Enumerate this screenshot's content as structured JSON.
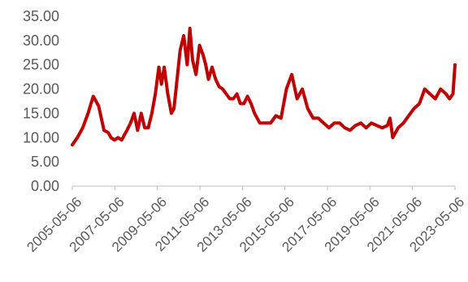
{
  "chart_data": {
    "type": "line",
    "title": "",
    "xlabel": "",
    "ylabel": "",
    "ylim": [
      0,
      35
    ],
    "yticks": [
      "0.00",
      "5.00",
      "10.00",
      "15.00",
      "20.00",
      "25.00",
      "30.00",
      "35.00"
    ],
    "xticks": [
      "2005-05-06",
      "2007-05-06",
      "2009-05-06",
      "2011-05-06",
      "2013-05-06",
      "2015-05-06",
      "2017-05-06",
      "2019-05-06",
      "2021-05-06",
      "2023-05-06"
    ],
    "grid": false,
    "legend": "none",
    "line_color": "#C00000",
    "series": [
      {
        "x": [
          "2005-05-06",
          "2005-08-01",
          "2005-11-01",
          "2006-02-01",
          "2006-05-01",
          "2006-08-01",
          "2006-11-01",
          "2007-01-15",
          "2007-03-01",
          "2007-05-01",
          "2007-07-01",
          "2007-09-01",
          "2007-10-15",
          "2007-12-01",
          "2008-02-01",
          "2008-04-01",
          "2008-06-01",
          "2008-08-01",
          "2008-10-01",
          "2008-12-01",
          "2009-02-01",
          "2009-04-01",
          "2009-06-01",
          "2009-07-15",
          "2009-09-01",
          "2009-11-01",
          "2010-01-01",
          "2010-02-15",
          "2010-04-01",
          "2010-06-01",
          "2010-08-01",
          "2010-10-01",
          "2010-11-15",
          "2011-01-01",
          "2011-03-01",
          "2011-05-01",
          "2011-07-01",
          "2011-08-15",
          "2011-10-01",
          "2011-12-01",
          "2012-02-01",
          "2012-04-01",
          "2012-06-01",
          "2012-08-01",
          "2012-10-01",
          "2012-12-01",
          "2013-02-01",
          "2013-04-01",
          "2013-06-01",
          "2013-08-01",
          "2013-10-01",
          "2013-12-01",
          "2014-03-01",
          "2014-06-01",
          "2014-09-01",
          "2014-12-01",
          "2015-03-01",
          "2015-06-01",
          "2015-09-01",
          "2015-12-01",
          "2016-03-01",
          "2016-06-01",
          "2016-09-01",
          "2016-12-01",
          "2017-03-01",
          "2017-06-01",
          "2017-09-01",
          "2017-12-01",
          "2018-03-01",
          "2018-06-01",
          "2018-09-01",
          "2018-12-01",
          "2019-03-01",
          "2019-06-01",
          "2019-09-01",
          "2019-12-01",
          "2020-03-01",
          "2020-04-15",
          "2020-06-01",
          "2020-09-01",
          "2020-12-01",
          "2021-03-01",
          "2021-06-01",
          "2021-09-01",
          "2021-12-01",
          "2022-03-01",
          "2022-06-01",
          "2022-09-01",
          "2022-12-01",
          "2023-02-01",
          "2023-04-01",
          "2023-05-06"
        ],
        "values": [
          8.5,
          10,
          12,
          15,
          18.5,
          16.5,
          11.5,
          11,
          10,
          9.5,
          10,
          9.5,
          10.5,
          11.5,
          13,
          15,
          11.5,
          15,
          12,
          12,
          15,
          19,
          24.5,
          21,
          24.5,
          19,
          15,
          16,
          21,
          28,
          31,
          25,
          32.5,
          26,
          23,
          29,
          27,
          25,
          22,
          24.5,
          22,
          20.5,
          20,
          19,
          18,
          18,
          19,
          17,
          17,
          18.5,
          17,
          15,
          13,
          13,
          13,
          14.5,
          14,
          20,
          23,
          18,
          20,
          16,
          14,
          14,
          13,
          12,
          13,
          13,
          12,
          11.5,
          12.5,
          13,
          12,
          13,
          12.5,
          12,
          12.5,
          14,
          10,
          12,
          13,
          14.5,
          16,
          17,
          20,
          19,
          18,
          20,
          19,
          18,
          19,
          25
        ]
      }
    ]
  }
}
